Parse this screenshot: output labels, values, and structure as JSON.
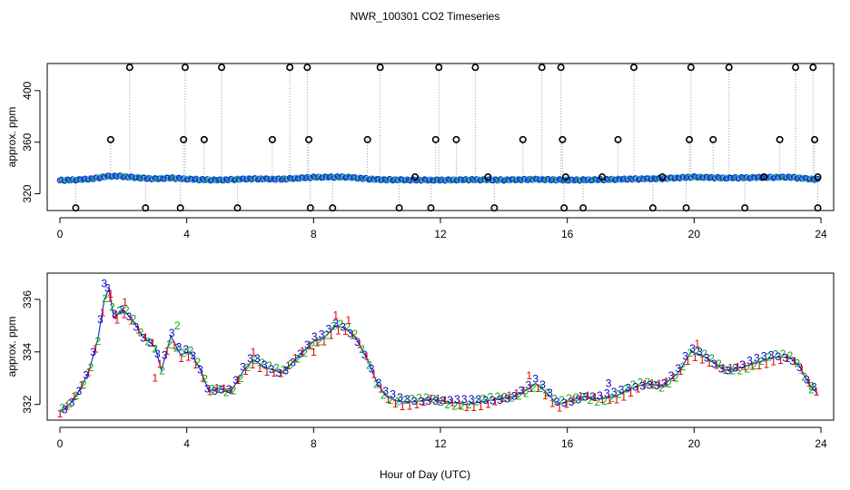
{
  "chart_data": {
    "title": "NWR_100301  CO2 Timeseries",
    "xlabel": "Hour of Day (UTC)",
    "type": "scatter",
    "panels": [
      {
        "name": "raw",
        "ylabel": "approx. ppm",
        "xlim": [
          -0.4,
          24.4
        ],
        "ylim": [
          307,
          421
        ],
        "xticks": [
          0,
          4,
          8,
          12,
          16,
          20,
          24
        ],
        "yticks": [
          320,
          360,
          400
        ],
        "baseline": [
          [
            0,
            330.4
          ],
          [
            0.5,
            330.8
          ],
          [
            1,
            331.6
          ],
          [
            1.5,
            333.5
          ],
          [
            1.8,
            333.8
          ],
          [
            2.2,
            332.9
          ],
          [
            3,
            331.5
          ],
          [
            3.5,
            332.3
          ],
          [
            4,
            331.4
          ],
          [
            4.5,
            330.9
          ],
          [
            5,
            330.6
          ],
          [
            6,
            331.6
          ],
          [
            7,
            331.3
          ],
          [
            8,
            332.8
          ],
          [
            9,
            333.0
          ],
          [
            10,
            331.0
          ],
          [
            11,
            330.7
          ],
          [
            12,
            330.6
          ],
          [
            13,
            330.9
          ],
          [
            14,
            330.7
          ],
          [
            15,
            331.2
          ],
          [
            16,
            330.6
          ],
          [
            17,
            330.9
          ],
          [
            18,
            331.4
          ],
          [
            19,
            331.8
          ],
          [
            20,
            333.0
          ],
          [
            21,
            332.2
          ],
          [
            22,
            332.6
          ],
          [
            23,
            332.9
          ],
          [
            23.5,
            331.8
          ],
          [
            23.9,
            331.0
          ]
        ],
        "outliers": [
          {
            "x": 0.5,
            "y": 309
          },
          {
            "x": 1.6,
            "y": 362
          },
          {
            "x": 2.2,
            "y": 418
          },
          {
            "x": 2.7,
            "y": 309
          },
          {
            "x": 3.8,
            "y": 309
          },
          {
            "x": 3.9,
            "y": 362
          },
          {
            "x": 3.95,
            "y": 418
          },
          {
            "x": 4.55,
            "y": 362
          },
          {
            "x": 5.1,
            "y": 418
          },
          {
            "x": 5.6,
            "y": 309
          },
          {
            "x": 6.7,
            "y": 362
          },
          {
            "x": 7.25,
            "y": 418
          },
          {
            "x": 7.8,
            "y": 418
          },
          {
            "x": 7.85,
            "y": 362
          },
          {
            "x": 7.9,
            "y": 309
          },
          {
            "x": 8.6,
            "y": 309
          },
          {
            "x": 9.7,
            "y": 362
          },
          {
            "x": 10.1,
            "y": 418
          },
          {
            "x": 10.7,
            "y": 309
          },
          {
            "x": 11.7,
            "y": 309
          },
          {
            "x": 11.85,
            "y": 362
          },
          {
            "x": 11.95,
            "y": 418
          },
          {
            "x": 12.5,
            "y": 362
          },
          {
            "x": 13.1,
            "y": 418
          },
          {
            "x": 13.7,
            "y": 309
          },
          {
            "x": 14.6,
            "y": 362
          },
          {
            "x": 15.2,
            "y": 418
          },
          {
            "x": 15.8,
            "y": 418
          },
          {
            "x": 15.85,
            "y": 362
          },
          {
            "x": 15.9,
            "y": 309
          },
          {
            "x": 16.5,
            "y": 309
          },
          {
            "x": 17.6,
            "y": 362
          },
          {
            "x": 18.1,
            "y": 418
          },
          {
            "x": 18.7,
            "y": 309
          },
          {
            "x": 19.75,
            "y": 309
          },
          {
            "x": 19.85,
            "y": 362
          },
          {
            "x": 19.9,
            "y": 418
          },
          {
            "x": 20.6,
            "y": 362
          },
          {
            "x": 21.1,
            "y": 418
          },
          {
            "x": 21.6,
            "y": 309
          },
          {
            "x": 22.7,
            "y": 362
          },
          {
            "x": 23.2,
            "y": 418
          },
          {
            "x": 23.75,
            "y": 418
          },
          {
            "x": 23.8,
            "y": 362
          },
          {
            "x": 23.9,
            "y": 309
          },
          {
            "x": 13.5,
            "y": 333
          },
          {
            "x": 17.1,
            "y": 333
          },
          {
            "x": 11.2,
            "y": 333
          },
          {
            "x": 15.95,
            "y": 333
          },
          {
            "x": 23.9,
            "y": 333
          },
          {
            "x": 19.0,
            "y": 333
          },
          {
            "x": 22.2,
            "y": 333
          }
        ]
      },
      {
        "name": "filtered",
        "ylabel": "approx. ppm",
        "xlim": [
          -0.4,
          24.4
        ],
        "ylim": [
          331.4,
          337.0
        ],
        "xticks": [
          0,
          4,
          8,
          12,
          16,
          20,
          24
        ],
        "yticks": [
          332,
          334,
          336
        ],
        "series": [
          {
            "name": "1",
            "color": "#dd0000"
          },
          {
            "name": "2",
            "color": "#00b000"
          },
          {
            "name": "3",
            "color": "#0000cc"
          }
        ],
        "curve": [
          [
            0,
            331.7
          ],
          [
            0.3,
            332.0
          ],
          [
            0.6,
            332.5
          ],
          [
            0.9,
            333.2
          ],
          [
            1.2,
            334.5
          ],
          [
            1.4,
            336.0
          ],
          [
            1.55,
            336.4
          ],
          [
            1.7,
            335.3
          ],
          [
            2.0,
            335.6
          ],
          [
            2.3,
            335.2
          ],
          [
            2.6,
            334.6
          ],
          [
            3.0,
            334.2
          ],
          [
            3.2,
            333.3
          ],
          [
            3.5,
            334.6
          ],
          [
            3.8,
            333.9
          ],
          [
            4.1,
            334.0
          ],
          [
            4.4,
            333.4
          ],
          [
            4.7,
            332.5
          ],
          [
            5.0,
            332.6
          ],
          [
            5.4,
            332.5
          ],
          [
            5.8,
            333.3
          ],
          [
            6.1,
            333.7
          ],
          [
            6.5,
            333.4
          ],
          [
            7.0,
            333.2
          ],
          [
            7.5,
            333.8
          ],
          [
            8.0,
            334.4
          ],
          [
            8.3,
            334.5
          ],
          [
            8.7,
            335.0
          ],
          [
            9.0,
            334.9
          ],
          [
            9.3,
            334.6
          ],
          [
            9.7,
            333.7
          ],
          [
            10.0,
            332.8
          ],
          [
            10.3,
            332.3
          ],
          [
            10.7,
            332.1
          ],
          [
            11.2,
            332.1
          ],
          [
            11.7,
            332.2
          ],
          [
            12.2,
            332.1
          ],
          [
            12.8,
            332.0
          ],
          [
            13.3,
            332.1
          ],
          [
            13.8,
            332.2
          ],
          [
            14.3,
            332.3
          ],
          [
            14.8,
            332.6
          ],
          [
            15.0,
            332.8
          ],
          [
            15.3,
            332.5
          ],
          [
            15.7,
            332.0
          ],
          [
            16.0,
            332.1
          ],
          [
            16.5,
            332.3
          ],
          [
            17.0,
            332.2
          ],
          [
            17.5,
            332.3
          ],
          [
            18.0,
            332.6
          ],
          [
            18.5,
            332.8
          ],
          [
            19.0,
            332.7
          ],
          [
            19.5,
            333.2
          ],
          [
            19.9,
            334.0
          ],
          [
            20.2,
            333.9
          ],
          [
            20.6,
            333.6
          ],
          [
            21.0,
            333.3
          ],
          [
            21.5,
            333.4
          ],
          [
            22.0,
            333.6
          ],
          [
            22.5,
            333.8
          ],
          [
            23.0,
            333.8
          ],
          [
            23.3,
            333.5
          ],
          [
            23.6,
            332.8
          ],
          [
            23.9,
            332.4
          ]
        ],
        "labels": [
          {
            "x": 1.4,
            "y": 336.6,
            "text": "3",
            "series": 2
          },
          {
            "x": 1.6,
            "y": 336.2,
            "text": "1",
            "series": 0
          },
          {
            "x": 1.75,
            "y": 335.4,
            "text": "1",
            "series": 0
          },
          {
            "x": 2.05,
            "y": 335.9,
            "text": "1",
            "series": 0
          },
          {
            "x": 3.0,
            "y": 333.0,
            "text": "1",
            "series": 0
          },
          {
            "x": 3.7,
            "y": 335.0,
            "text": "2",
            "series": 1
          },
          {
            "x": 6.1,
            "y": 334.0,
            "text": "1",
            "series": 0
          },
          {
            "x": 8.0,
            "y": 334.0,
            "text": "1",
            "series": 0
          },
          {
            "x": 8.7,
            "y": 335.4,
            "text": "1",
            "series": 0
          },
          {
            "x": 9.1,
            "y": 335.2,
            "text": "1",
            "series": 0
          },
          {
            "x": 14.8,
            "y": 333.1,
            "text": "1",
            "series": 0
          },
          {
            "x": 17.3,
            "y": 332.8,
            "text": "3",
            "series": 2
          },
          {
            "x": 20.1,
            "y": 334.3,
            "text": "1",
            "series": 0
          },
          {
            "x": 23.7,
            "y": 332.7,
            "text": "2",
            "series": 1
          }
        ]
      }
    ]
  }
}
